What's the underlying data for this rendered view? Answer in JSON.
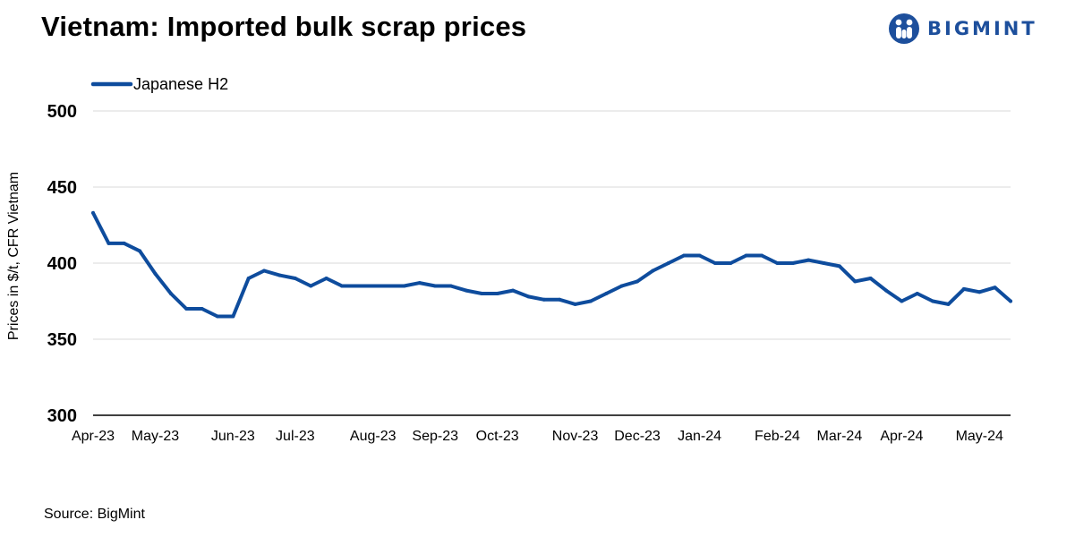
{
  "title": "Vietnam: Imported bulk scrap prices",
  "logo_text": "BIGMINT",
  "source": "Source: BigMint",
  "colors": {
    "series": "#0e4c9d",
    "logo": "#1d4f9c",
    "grid": "#d9d9d9",
    "axis": "#000000"
  },
  "chart_data": {
    "type": "line",
    "title": "Vietnam: Imported bulk scrap prices",
    "xlabel": "",
    "ylabel": "Prices in $/t, CFR Vietnam",
    "ylim": [
      300,
      500
    ],
    "yticks": [
      300,
      350,
      400,
      450,
      500
    ],
    "grid": true,
    "legend_position": "top-left",
    "x_tick_labels": [
      "Apr-23",
      "May-23",
      "Jun-23",
      "Jul-23",
      "Aug-23",
      "Sep-23",
      "Oct-23",
      "Nov-23",
      "Dec-23",
      "Jan-24",
      "Feb-24",
      "Mar-24",
      "Apr-24",
      "May-24"
    ],
    "x_tick_weeks": [
      0,
      4,
      9,
      13,
      18,
      22,
      26,
      31,
      35,
      39,
      44,
      48,
      52,
      57
    ],
    "series": [
      {
        "name": "Japanese H2",
        "values": [
          433,
          413,
          413,
          408,
          393,
          380,
          370,
          370,
          365,
          365,
          390,
          395,
          392,
          390,
          385,
          390,
          385,
          385,
          385,
          385,
          385,
          387,
          385,
          385,
          382,
          380,
          380,
          382,
          378,
          376,
          376,
          373,
          375,
          380,
          385,
          388,
          395,
          400,
          405,
          405,
          400,
          400,
          405,
          405,
          400,
          400,
          402,
          400,
          398,
          388,
          390,
          382,
          375,
          380,
          375,
          373,
          383,
          381,
          384,
          375
        ]
      }
    ]
  }
}
